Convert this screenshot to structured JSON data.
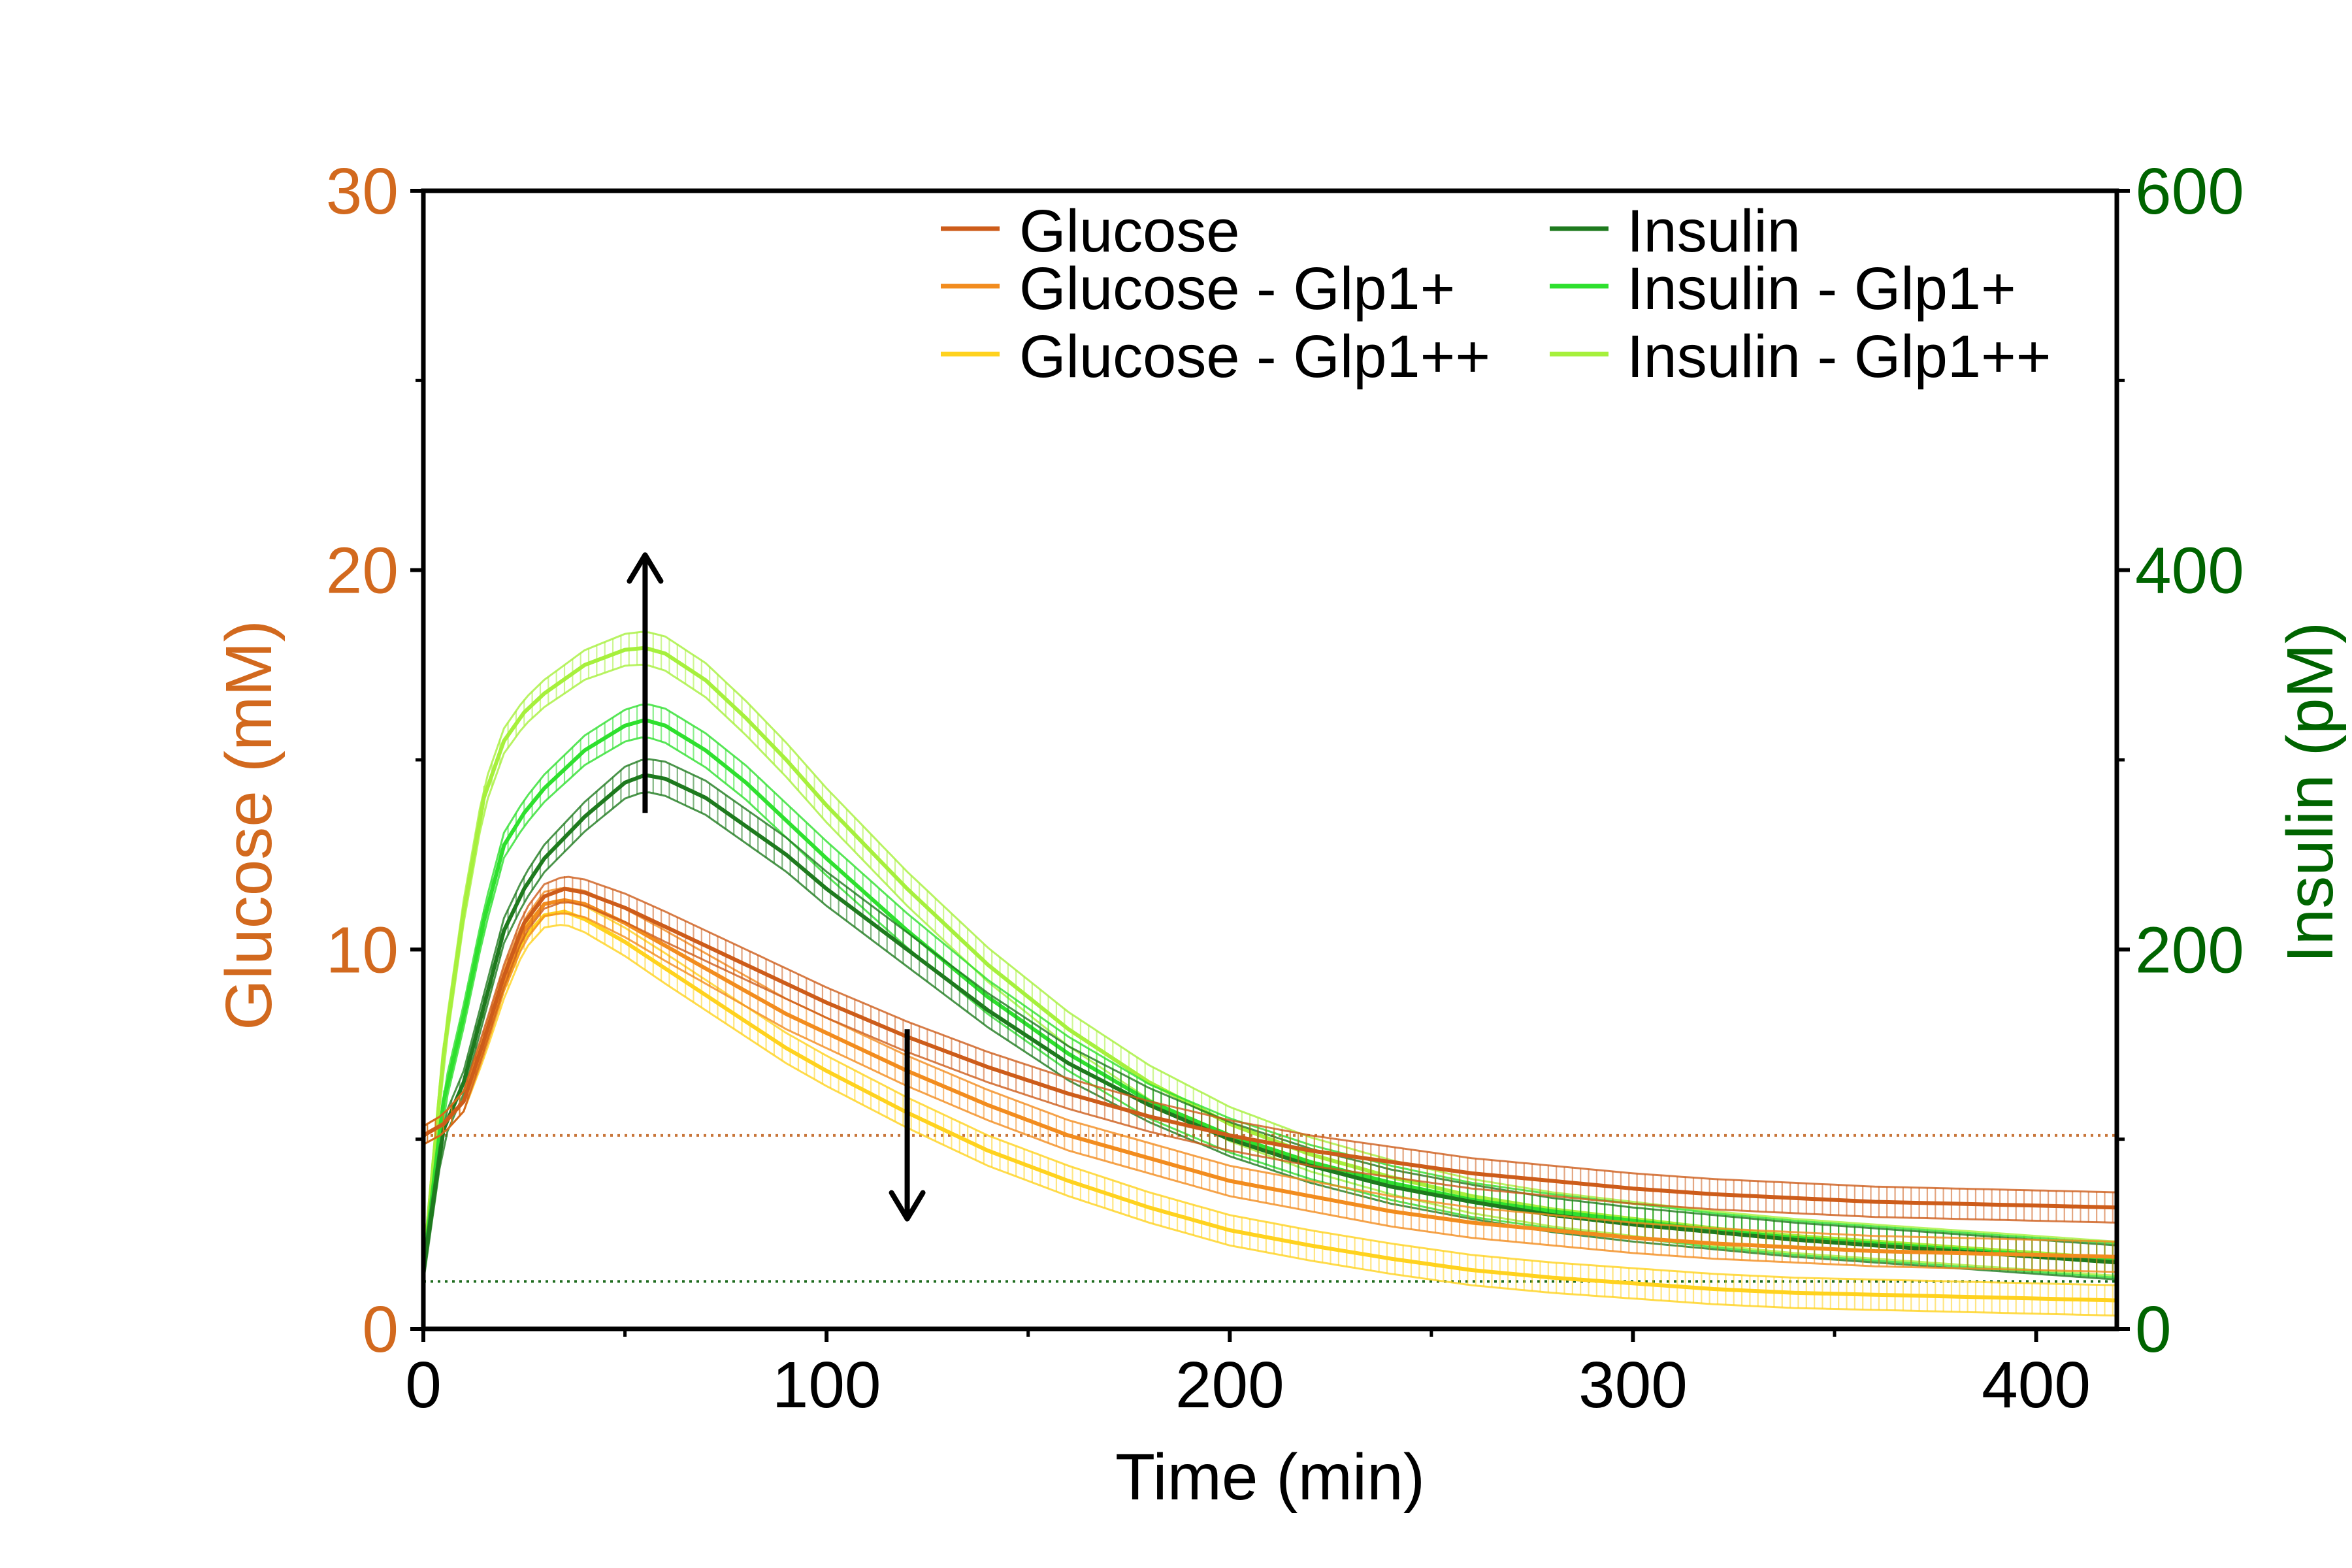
{
  "chart_data": {
    "type": "line",
    "xlabel": "Time (min)",
    "ylabel_left": "Glucose (mM)",
    "ylabel_right": "Insulin (pM)",
    "xlim": [
      0,
      420
    ],
    "ylim_left": [
      0,
      30
    ],
    "ylim_right": [
      0,
      600
    ],
    "x_ticks": [
      0,
      100,
      200,
      300,
      400
    ],
    "y_left_ticks": [
      0,
      10,
      20,
      30
    ],
    "y_right_ticks": [
      0,
      200,
      400,
      600
    ],
    "grid": false,
    "legend_position": "top-right",
    "colors": {
      "left_axis": "#D2691E",
      "right_axis": "#006400",
      "frame": "#000000"
    },
    "reference_lines": [
      {
        "axis": "left",
        "value": 5.1,
        "color": "#C8763A",
        "style": "dotted"
      },
      {
        "axis": "left",
        "value": 1.25,
        "color": "#1E6B1E",
        "style": "dotted"
      }
    ],
    "annotations": [
      {
        "type": "arrow",
        "direction": "up",
        "x": 55,
        "from": 13.6,
        "to": 20.4
      },
      {
        "type": "arrow",
        "direction": "down",
        "x": 120,
        "from": 7.9,
        "to": 2.9
      }
    ],
    "series": [
      {
        "name": "Glucose",
        "axis": "left",
        "color": "#CD5C1A",
        "x": [
          0,
          5,
          10,
          15,
          20,
          25,
          30,
          35,
          40,
          50,
          60,
          70,
          80,
          90,
          100,
          120,
          140,
          160,
          180,
          200,
          220,
          240,
          260,
          280,
          300,
          320,
          340,
          360,
          380,
          400,
          420
        ],
        "y": [
          5.1,
          5.4,
          6.0,
          7.6,
          9.3,
          10.7,
          11.4,
          11.6,
          11.5,
          11.1,
          10.6,
          10.1,
          9.6,
          9.1,
          8.6,
          7.7,
          6.9,
          6.2,
          5.6,
          5.1,
          4.7,
          4.4,
          4.1,
          3.9,
          3.7,
          3.55,
          3.45,
          3.35,
          3.3,
          3.25,
          3.2
        ]
      },
      {
        "name": "Glucose - Glp1+",
        "axis": "left",
        "color": "#F28C1E",
        "x": [
          0,
          5,
          10,
          15,
          20,
          25,
          30,
          35,
          40,
          50,
          60,
          70,
          80,
          90,
          100,
          120,
          140,
          160,
          180,
          200,
          220,
          240,
          260,
          280,
          300,
          320,
          340,
          360,
          380,
          400,
          420
        ],
        "y": [
          5.1,
          5.4,
          6.0,
          7.5,
          9.2,
          10.5,
          11.2,
          11.3,
          11.2,
          10.7,
          10.1,
          9.5,
          8.9,
          8.3,
          7.8,
          6.8,
          5.9,
          5.1,
          4.5,
          3.9,
          3.5,
          3.1,
          2.8,
          2.6,
          2.4,
          2.25,
          2.15,
          2.05,
          2.0,
          1.95,
          1.9
        ]
      },
      {
        "name": "Glucose - Glp1++",
        "axis": "left",
        "color": "#FFD21E",
        "x": [
          0,
          5,
          10,
          15,
          20,
          25,
          30,
          35,
          40,
          50,
          60,
          70,
          80,
          90,
          100,
          120,
          140,
          160,
          180,
          200,
          220,
          240,
          260,
          280,
          300,
          320,
          340,
          360,
          380,
          400,
          420
        ],
        "y": [
          5.1,
          5.4,
          6.0,
          7.4,
          9.0,
          10.3,
          10.9,
          11.0,
          10.8,
          10.2,
          9.5,
          8.8,
          8.1,
          7.4,
          6.8,
          5.7,
          4.7,
          3.9,
          3.2,
          2.6,
          2.2,
          1.85,
          1.55,
          1.35,
          1.2,
          1.05,
          0.95,
          0.9,
          0.85,
          0.8,
          0.75
        ]
      },
      {
        "name": "Insulin",
        "axis": "right",
        "color": "#1E7A1E",
        "x": [
          0,
          5,
          10,
          15,
          20,
          25,
          30,
          40,
          50,
          55,
          60,
          70,
          80,
          90,
          100,
          120,
          140,
          160,
          180,
          200,
          220,
          240,
          260,
          280,
          300,
          320,
          340,
          360,
          380,
          400,
          420
        ],
        "y": [
          30,
          105,
          130,
          170,
          210,
          232,
          248,
          270,
          288,
          292,
          290,
          280,
          265,
          250,
          232,
          200,
          168,
          140,
          118,
          100,
          86,
          75,
          67,
          60,
          55,
          51,
          47,
          44,
          41,
          38,
          35
        ]
      },
      {
        "name": "Insulin - Glp1+",
        "axis": "right",
        "color": "#2EE02E",
        "x": [
          0,
          5,
          10,
          15,
          20,
          25,
          30,
          40,
          50,
          55,
          60,
          70,
          80,
          90,
          100,
          120,
          140,
          160,
          180,
          200,
          220,
          240,
          260,
          280,
          300,
          320,
          340,
          360,
          380,
          400,
          420
        ],
        "y": [
          30,
          120,
          165,
          215,
          255,
          272,
          285,
          305,
          318,
          321,
          318,
          305,
          288,
          268,
          248,
          210,
          175,
          145,
          120,
          102,
          88,
          77,
          68,
          62,
          57,
          52,
          48,
          45,
          42,
          39,
          36
        ]
      },
      {
        "name": "Insulin - Glp1++",
        "axis": "right",
        "color": "#A6F03C",
        "x": [
          0,
          5,
          10,
          15,
          20,
          25,
          30,
          40,
          50,
          55,
          60,
          70,
          80,
          90,
          100,
          120,
          140,
          160,
          180,
          200,
          220,
          240,
          260,
          280,
          300,
          320,
          340,
          360,
          380,
          400,
          420
        ],
        "y": [
          30,
          145,
          220,
          280,
          310,
          325,
          335,
          350,
          358,
          359,
          356,
          342,
          322,
          300,
          276,
          232,
          192,
          158,
          130,
          108,
          92,
          80,
          70,
          63,
          58,
          53,
          49,
          46,
          43,
          40,
          37
        ]
      }
    ]
  }
}
